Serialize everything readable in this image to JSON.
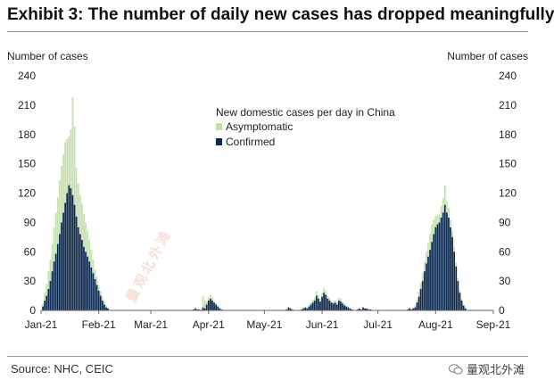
{
  "title": "Exhibit 3: The number of daily new cases has dropped meaningfully",
  "source": "Source: NHC, CEIC",
  "watermark_brand": "量观北外滩",
  "colors": {
    "asymptomatic": "#c6e0b0",
    "confirmed": "#0d2a4e",
    "axis": "#666666",
    "watermark": "#f1c6b6"
  },
  "chart_data": {
    "type": "bar",
    "stacked": true,
    "ylabel_left": "Number of cases",
    "ylabel_right": "Number of cases",
    "ylim": [
      0,
      240
    ],
    "yticks": [
      0,
      30,
      60,
      90,
      120,
      150,
      180,
      210,
      240
    ],
    "x_range": [
      "2021-01-01",
      "2021-09-01"
    ],
    "xticks": [
      "Jan-21",
      "Feb-21",
      "Mar-21",
      "Apr-21",
      "May-21",
      "Jun-21",
      "Jul-21",
      "Aug-21",
      "Sep-21"
    ],
    "legend": {
      "title": "New domestic cases per day in China",
      "entries": [
        "Asymptomatic",
        "Confirmed"
      ],
      "placement": "center-top"
    },
    "series": [
      {
        "name": "Confirmed",
        "segments": [
          {
            "start": "2021-01-02",
            "values": [
              4,
              10,
              15,
              22,
              30,
              40,
              50,
              58,
              68,
              78,
              90,
              100,
              110,
              120,
              128,
              125,
              118,
              108,
              96,
              85,
              78,
              72,
              65,
              60,
              55,
              50,
              44,
              38,
              32,
              26,
              20,
              15,
              10,
              6,
              3,
              2
            ]
          },
          {
            "start": "2021-03-24",
            "values": [
              1,
              2,
              1,
              1,
              0,
              3,
              2,
              6,
              10,
              12,
              10,
              8,
              6,
              4,
              2,
              1
            ]
          },
          {
            "start": "2021-05-13",
            "values": [
              1,
              3,
              2,
              1
            ]
          },
          {
            "start": "2021-05-21",
            "values": [
              1,
              2,
              3,
              2,
              4,
              6,
              8,
              10,
              15,
              12,
              9,
              14,
              18,
              16,
              12,
              10,
              8,
              7,
              8,
              6,
              10,
              9,
              7,
              5,
              4,
              3,
              2,
              1
            ]
          },
          {
            "start": "2021-06-20",
            "values": [
              1,
              2,
              1,
              3,
              2,
              2,
              1,
              1
            ]
          },
          {
            "start": "2021-07-17",
            "values": [
              1,
              2,
              1,
              2,
              3,
              8,
              14,
              22,
              30,
              40,
              48,
              55,
              62,
              70,
              78,
              85,
              88,
              90,
              95,
              100,
              108,
              100,
              95,
              85,
              75,
              60,
              45,
              30,
              18,
              10,
              5,
              2
            ]
          }
        ]
      },
      {
        "name": "Asymptomatic",
        "segments": [
          {
            "start": "2021-01-02",
            "values": [
              3,
              8,
              12,
              18,
              22,
              28,
              35,
              42,
              48,
              55,
              58,
              60,
              62,
              55,
              50,
              60,
              100,
              80,
              50,
              45,
              40,
              38,
              34,
              30,
              26,
              22,
              18,
              14,
              10,
              8,
              6,
              5,
              4,
              3,
              2,
              1
            ]
          },
          {
            "start": "2021-03-24",
            "values": [
              0,
              1,
              0,
              0,
              1,
              12,
              8,
              3,
              3,
              4,
              3,
              2,
              2,
              1,
              1,
              0
            ]
          },
          {
            "start": "2021-05-13",
            "values": [
              0,
              1,
              0,
              0
            ]
          },
          {
            "start": "2021-05-21",
            "values": [
              0,
              1,
              1,
              1,
              1,
              2,
              3,
              3,
              5,
              4,
              3,
              4,
              5,
              4,
              3,
              3,
              2,
              2,
              2,
              2,
              3,
              3,
              2,
              2,
              1,
              1,
              0,
              0
            ]
          },
          {
            "start": "2021-06-20",
            "values": [
              0,
              0,
              0,
              1,
              0,
              0,
              0,
              0
            ]
          },
          {
            "start": "2021-07-17",
            "values": [
              0,
              1,
              1,
              1,
              2,
              3,
              5,
              6,
              8,
              10,
              12,
              14,
              16,
              18,
              15,
              12,
              10,
              8,
              12,
              15,
              20,
              12,
              10,
              8,
              6,
              5,
              4,
              3,
              2,
              2,
              1,
              1
            ]
          }
        ]
      }
    ]
  }
}
